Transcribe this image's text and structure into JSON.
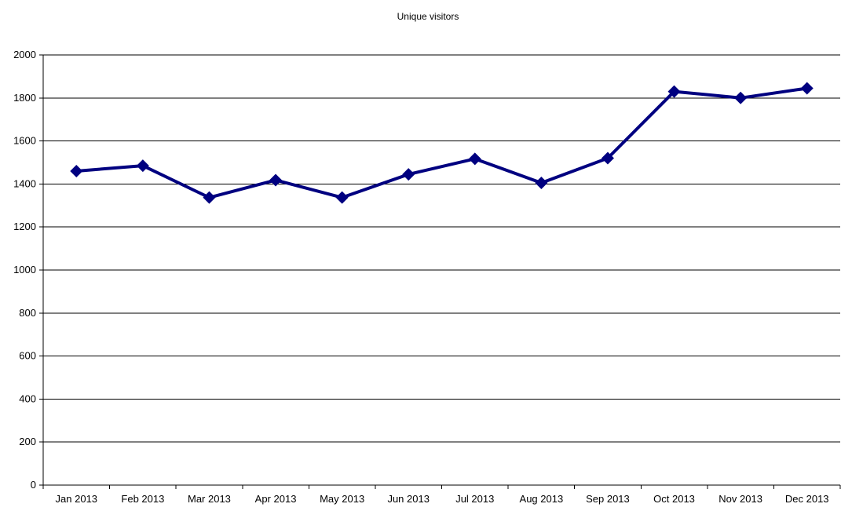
{
  "chart_data": {
    "type": "line",
    "title": "Unique visitors",
    "xlabel": "",
    "ylabel": "",
    "categories": [
      "Jan 2013",
      "Feb 2013",
      "Mar 2013",
      "Apr 2013",
      "May 2013",
      "Jun 2013",
      "Jul 2013",
      "Aug 2013",
      "Sep 2013",
      "Oct 2013",
      "Nov 2013",
      "Dec 2013"
    ],
    "series": [
      {
        "values": [
          1460,
          1485,
          1337,
          1418,
          1337,
          1445,
          1517,
          1405,
          1520,
          1830,
          1800,
          1845
        ],
        "color": "#000080",
        "marker": "diamond"
      }
    ],
    "ylim": [
      0,
      2000
    ],
    "yticks": [
      0,
      200,
      400,
      600,
      800,
      1000,
      1200,
      1400,
      1600,
      1800,
      2000
    ],
    "grid": "horizontal",
    "legend": "none"
  }
}
